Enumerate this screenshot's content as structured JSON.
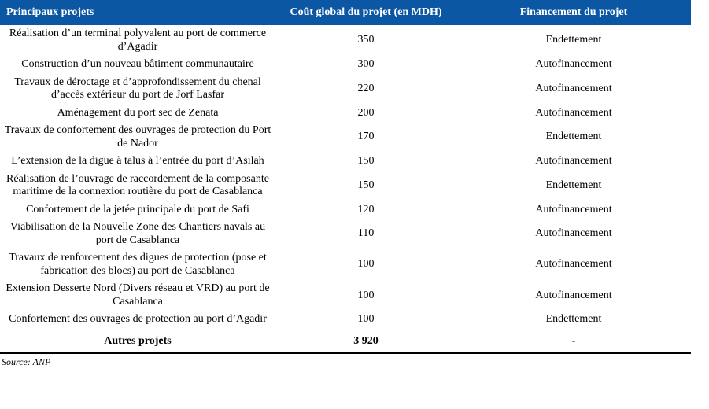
{
  "table": {
    "headers": {
      "project": "Principaux projets",
      "cost": "Coût global du projet (en MDH)",
      "financing": "Financement du projet"
    },
    "rows": [
      {
        "project": "Réalisation d’un terminal polyvalent au port de commerce d’Agadir",
        "cost": "350",
        "financing": "Endettement"
      },
      {
        "project": "Construction d’un nouveau bâtiment communautaire",
        "cost": "300",
        "financing": "Autofinancement"
      },
      {
        "project": "Travaux de déroctage et d’approfondissement du chenal d’accès extérieur du port de Jorf Lasfar",
        "cost": "220",
        "financing": "Autofinancement"
      },
      {
        "project": "Aménagement du port sec de Zenata",
        "cost": "200",
        "financing": "Autofinancement"
      },
      {
        "project": "Travaux de confortement des ouvrages de protection du Port de Nador",
        "cost": "170",
        "financing": "Endettement"
      },
      {
        "project": "L’extension de la digue à talus à l’entrée du port d’Asilah",
        "cost": "150",
        "financing": "Autofinancement"
      },
      {
        "project": "Réalisation de l’ouvrage de raccordement de la composante maritime de la connexion routière du port de Casablanca",
        "cost": "150",
        "financing": "Endettement"
      },
      {
        "project": "Confortement de la jetée principale du port de Safi",
        "cost": "120",
        "financing": "Autofinancement"
      },
      {
        "project": "Viabilisation de la Nouvelle Zone des Chantiers navals au port de Casablanca",
        "cost": "110",
        "financing": "Autofinancement"
      },
      {
        "project": "Travaux de renforcement des digues de protection (pose et fabrication des blocs) au port de Casablanca",
        "cost": "100",
        "financing": "Autofinancement"
      },
      {
        "project": "Extension Desserte Nord (Divers réseau et VRD) au port de Casablanca",
        "cost": "100",
        "financing": "Autofinancement"
      },
      {
        "project": "Confortement des ouvrages de protection au port d’Agadir",
        "cost": "100",
        "financing": "Endettement"
      }
    ],
    "total_row": {
      "project": "Autres projets",
      "cost": "3 920",
      "financing": "-"
    }
  },
  "source": "Source: ANP",
  "colors": {
    "header_bg": "#0B57A4",
    "header_text": "#FFFFFF",
    "body_text": "#000000"
  }
}
